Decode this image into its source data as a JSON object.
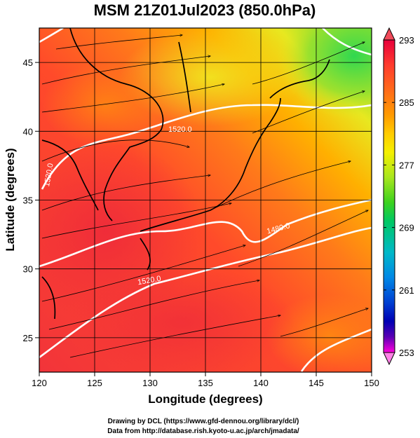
{
  "title": "MSM 21Z01Jul2023 (850.0hPa)",
  "map": {
    "xlabel": "Longitude (degrees)",
    "ylabel": "Latitude  (degrees)",
    "x_ticks": [
      "120",
      "125",
      "130",
      "135",
      "140",
      "145",
      "150"
    ],
    "y_ticks": [
      "25",
      "30",
      "35",
      "40",
      "45"
    ],
    "lon_range": [
      120,
      150
    ],
    "lat_range": [
      22.5,
      47.5
    ],
    "contour_labels": [
      "1520.0",
      "1520.0",
      "1480.0",
      "1520.0"
    ]
  },
  "colorbar": {
    "ticks": [
      "293",
      "285",
      "277",
      "269",
      "261",
      "253"
    ],
    "colors": [
      "#e8003c",
      "#ff3b2e",
      "#ff6a1a",
      "#ff9a00",
      "#ffcc00",
      "#f5f000",
      "#a8e61e",
      "#3cd21e",
      "#00c864",
      "#00b8c8",
      "#0088e6",
      "#0040d2",
      "#0000b4",
      "#5a00b4",
      "#b400c8",
      "#ff00dc"
    ]
  },
  "credits": {
    "line1": "Drawing by DCL (https://www.gfd-dennou.org/library/dcl/)",
    "line2": "Data from http://database.rish.kyoto-u.ac.jp/arch/jmadata/"
  }
}
